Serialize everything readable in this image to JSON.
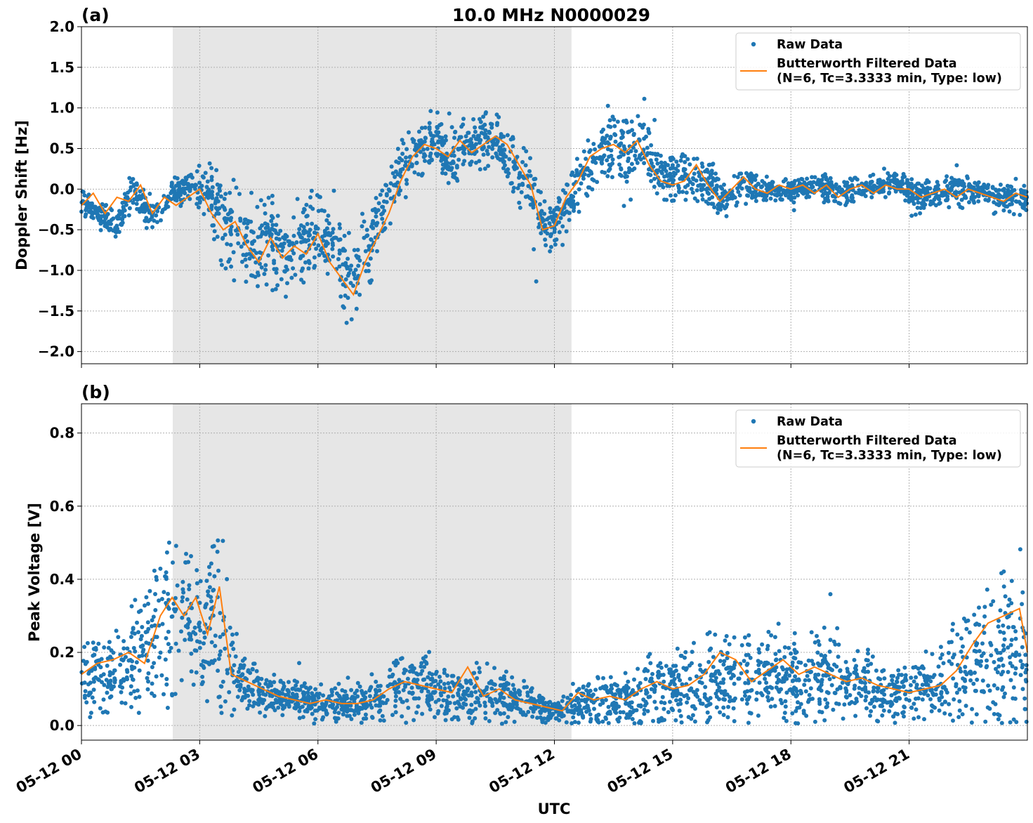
{
  "chart_data": [
    {
      "type": "scatter",
      "panel_label": "(a)",
      "title": "10.0 MHz N0000029",
      "xlabel": "",
      "ylabel": "Doppler Shift [Hz]",
      "xlim": [
        "05-12 00:00",
        "05-13 00:00"
      ],
      "ylim": [
        -2.15,
        2.0
      ],
      "yticks": [
        "2.0",
        "1.5",
        "1.0",
        "0.5",
        "0.0",
        "−0.5",
        "−1.0",
        "−1.5",
        "−2.0"
      ],
      "ytick_values": [
        2.0,
        1.5,
        1.0,
        0.5,
        0.0,
        -0.5,
        -1.0,
        -1.5,
        -2.0
      ],
      "grid": true,
      "shaded_interval": [
        "05-12 02:19",
        "05-12 12:26"
      ],
      "legend_position": "top-right",
      "series": [
        {
          "name": "Raw Data",
          "kind": "points",
          "color": "#1f77b4",
          "x_hours": [
            0,
            0.5,
            0.9,
            1.3,
            1.8,
            2.3,
            2.8,
            3.3,
            3.8,
            4.3,
            4.8,
            5.3,
            5.8,
            6.3,
            6.8,
            7.3,
            7.8,
            8.3,
            8.8,
            9.3,
            9.8,
            10.3,
            10.8,
            11.3,
            11.8,
            12.3,
            12.8,
            13.3,
            13.8,
            14.3,
            14.8,
            15.3,
            15.8,
            16.3,
            16.8,
            17.3,
            17.8,
            18.3,
            18.8,
            19.3,
            19.8,
            20.3,
            20.8,
            21.3,
            21.8,
            22.3,
            22.8,
            23.3,
            23.9
          ],
          "center": [
            -0.15,
            -0.3,
            -0.45,
            0.0,
            -0.35,
            -0.05,
            0.05,
            -0.1,
            -0.5,
            -0.75,
            -0.6,
            -0.8,
            -0.5,
            -0.6,
            -1.1,
            -0.75,
            -0.1,
            0.45,
            0.6,
            0.4,
            0.55,
            0.65,
            0.4,
            0.05,
            -0.5,
            -0.2,
            0.2,
            0.55,
            0.4,
            0.5,
            0.15,
            0.1,
            0.15,
            -0.15,
            0.05,
            0.0,
            0.0,
            0.0,
            0.05,
            -0.1,
            0.0,
            0.05,
            0.05,
            -0.1,
            -0.05,
            0.0,
            -0.05,
            -0.1,
            -0.1
          ],
          "spread": [
            0.15,
            0.15,
            0.15,
            0.15,
            0.15,
            0.15,
            0.15,
            0.35,
            0.45,
            0.5,
            0.4,
            0.4,
            0.4,
            0.4,
            0.45,
            0.35,
            0.3,
            0.3,
            0.3,
            0.3,
            0.3,
            0.3,
            0.3,
            0.3,
            0.25,
            0.25,
            0.3,
            0.35,
            0.4,
            0.4,
            0.3,
            0.25,
            0.25,
            0.2,
            0.15,
            0.15,
            0.12,
            0.12,
            0.12,
            0.15,
            0.12,
            0.12,
            0.12,
            0.15,
            0.15,
            0.15,
            0.15,
            0.15,
            0.15
          ]
        },
        {
          "name": "Butterworth Filtered Data\n(N=6, Tc=3.3333 min, Type: low)",
          "name_line1": "Butterworth Filtered Data",
          "name_line2": "(N=6, Tc=3.3333 min, Type: low)",
          "kind": "line",
          "color": "#ff7f0e",
          "x_hours": [
            0,
            0.3,
            0.6,
            0.9,
            1.2,
            1.5,
            1.8,
            2.1,
            2.4,
            2.7,
            3.0,
            3.3,
            3.6,
            3.9,
            4.2,
            4.5,
            4.8,
            5.1,
            5.4,
            5.7,
            6.0,
            6.3,
            6.6,
            6.9,
            7.2,
            7.5,
            7.8,
            8.1,
            8.4,
            8.7,
            9.0,
            9.3,
            9.6,
            9.9,
            10.2,
            10.5,
            10.8,
            11.1,
            11.4,
            11.7,
            12.0,
            12.3,
            12.6,
            12.9,
            13.2,
            13.5,
            13.8,
            14.1,
            14.4,
            14.7,
            15.0,
            15.3,
            15.6,
            15.9,
            16.2,
            16.5,
            16.8,
            17.1,
            17.4,
            17.7,
            18.0,
            18.3,
            18.6,
            18.9,
            19.2,
            19.5,
            19.8,
            20.1,
            20.4,
            20.7,
            21.0,
            21.3,
            21.6,
            21.9,
            22.2,
            22.5,
            22.8,
            23.1,
            23.4,
            23.7,
            24.0
          ],
          "values": [
            -0.2,
            -0.05,
            -0.3,
            -0.1,
            -0.15,
            0.05,
            -0.3,
            -0.1,
            -0.2,
            -0.1,
            0.0,
            -0.3,
            -0.5,
            -0.4,
            -0.7,
            -0.9,
            -0.6,
            -0.85,
            -0.7,
            -0.8,
            -0.55,
            -0.9,
            -1.1,
            -1.3,
            -0.9,
            -0.6,
            -0.3,
            0.1,
            0.4,
            0.55,
            0.5,
            0.4,
            0.6,
            0.45,
            0.55,
            0.65,
            0.55,
            0.3,
            0.05,
            -0.5,
            -0.45,
            -0.1,
            0.1,
            0.4,
            0.5,
            0.55,
            0.45,
            0.6,
            0.3,
            0.1,
            0.05,
            0.1,
            0.3,
            0.05,
            -0.15,
            0.0,
            0.15,
            0.0,
            -0.05,
            0.05,
            0.0,
            0.05,
            -0.05,
            0.05,
            -0.1,
            0.0,
            0.05,
            -0.05,
            0.05,
            0.0,
            0.0,
            -0.1,
            -0.05,
            0.0,
            -0.1,
            0.0,
            -0.05,
            -0.1,
            -0.15,
            -0.05,
            -0.1
          ]
        }
      ]
    },
    {
      "type": "scatter",
      "panel_label": "(b)",
      "title": "",
      "xlabel": "UTC",
      "ylabel": "Peak Voltage [V]",
      "xlim": [
        "05-12 00:00",
        "05-13 00:00"
      ],
      "ylim": [
        -0.04,
        0.88
      ],
      "yticks": [
        "0.8",
        "0.6",
        "0.4",
        "0.2",
        "0.0"
      ],
      "ytick_values": [
        0.8,
        0.6,
        0.4,
        0.2,
        0.0
      ],
      "xticks": [
        "05-12 00",
        "05-12 03",
        "05-12 06",
        "05-12 09",
        "05-12 12",
        "05-12 15",
        "05-12 18",
        "05-12 21"
      ],
      "xtick_hours": [
        0,
        3,
        6,
        9,
        12,
        15,
        18,
        21
      ],
      "grid": true,
      "shaded_interval": [
        "05-12 02:19",
        "05-12 12:26"
      ],
      "legend_position": "top-right",
      "series": [
        {
          "name": "Raw Data",
          "kind": "points",
          "color": "#1f77b4",
          "x_hours": [
            0,
            0.5,
            1.0,
            1.5,
            2.0,
            2.5,
            3.0,
            3.5,
            4.0,
            4.5,
            5.0,
            5.5,
            6.0,
            6.5,
            7.0,
            7.5,
            8.0,
            8.5,
            9.0,
            9.5,
            10.0,
            10.5,
            11.0,
            11.5,
            12.0,
            12.5,
            13.0,
            13.5,
            14.0,
            14.5,
            15.0,
            15.5,
            16.0,
            16.5,
            17.0,
            17.5,
            18.0,
            18.5,
            19.0,
            19.5,
            20.0,
            20.5,
            21.0,
            21.5,
            22.0,
            22.5,
            23.0,
            23.5,
            24.0
          ],
          "center": [
            0.13,
            0.15,
            0.17,
            0.19,
            0.25,
            0.3,
            0.25,
            0.28,
            0.12,
            0.09,
            0.08,
            0.07,
            0.06,
            0.06,
            0.06,
            0.07,
            0.1,
            0.11,
            0.1,
            0.08,
            0.09,
            0.08,
            0.07,
            0.05,
            0.04,
            0.05,
            0.06,
            0.07,
            0.08,
            0.09,
            0.1,
            0.11,
            0.12,
            0.13,
            0.13,
            0.14,
            0.13,
            0.13,
            0.13,
            0.11,
            0.1,
            0.09,
            0.09,
            0.1,
            0.12,
            0.16,
            0.2,
            0.22,
            0.2
          ],
          "spread": [
            0.08,
            0.09,
            0.1,
            0.12,
            0.18,
            0.2,
            0.18,
            0.2,
            0.07,
            0.05,
            0.04,
            0.04,
            0.04,
            0.04,
            0.04,
            0.05,
            0.08,
            0.08,
            0.07,
            0.06,
            0.07,
            0.06,
            0.05,
            0.04,
            0.03,
            0.04,
            0.05,
            0.06,
            0.07,
            0.08,
            0.08,
            0.1,
            0.11,
            0.1,
            0.1,
            0.1,
            0.1,
            0.1,
            0.1,
            0.08,
            0.07,
            0.06,
            0.06,
            0.08,
            0.1,
            0.14,
            0.18,
            0.2,
            0.18
          ]
        },
        {
          "name": "Butterworth Filtered Data\n(N=6, Tc=3.3333 min, Type: low)",
          "name_line1": "Butterworth Filtered Data",
          "name_line2": "(N=6, Tc=3.3333 min, Type: low)",
          "kind": "line",
          "color": "#ff7f0e",
          "x_hours": [
            0,
            0.4,
            0.8,
            1.2,
            1.6,
            2.0,
            2.3,
            2.6,
            2.9,
            3.2,
            3.5,
            3.8,
            4.2,
            4.6,
            5.0,
            5.4,
            5.8,
            6.2,
            6.6,
            7.0,
            7.4,
            7.8,
            8.2,
            8.6,
            9.0,
            9.4,
            9.8,
            10.2,
            10.6,
            11.0,
            11.4,
            11.8,
            12.2,
            12.6,
            13.0,
            13.4,
            13.8,
            14.2,
            14.6,
            15.0,
            15.4,
            15.8,
            16.2,
            16.6,
            17.0,
            17.4,
            17.8,
            18.2,
            18.6,
            19.0,
            19.4,
            19.8,
            20.2,
            20.6,
            21.0,
            21.4,
            21.8,
            22.2,
            22.6,
            23.0,
            23.4,
            23.8,
            24.0
          ],
          "values": [
            0.14,
            0.17,
            0.18,
            0.2,
            0.17,
            0.3,
            0.35,
            0.3,
            0.35,
            0.25,
            0.38,
            0.14,
            0.12,
            0.1,
            0.08,
            0.07,
            0.06,
            0.07,
            0.06,
            0.06,
            0.07,
            0.1,
            0.12,
            0.11,
            0.1,
            0.09,
            0.16,
            0.08,
            0.1,
            0.07,
            0.06,
            0.05,
            0.04,
            0.09,
            0.07,
            0.08,
            0.07,
            0.1,
            0.12,
            0.1,
            0.11,
            0.14,
            0.2,
            0.18,
            0.12,
            0.15,
            0.18,
            0.14,
            0.16,
            0.14,
            0.12,
            0.13,
            0.11,
            0.1,
            0.09,
            0.1,
            0.11,
            0.15,
            0.22,
            0.28,
            0.3,
            0.32,
            0.2
          ]
        }
      ]
    }
  ]
}
